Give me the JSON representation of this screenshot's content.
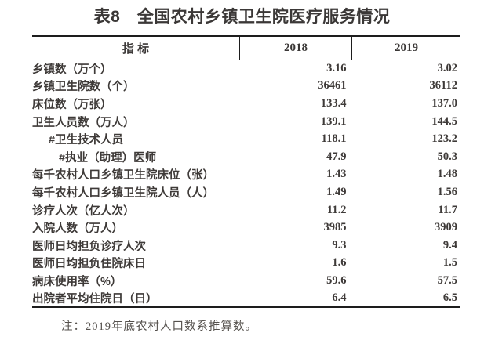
{
  "title": "表8　全国农村乡镇卫生院医疗服务情况",
  "table": {
    "columns": [
      "指 标",
      "2018",
      "2019"
    ],
    "rows": [
      {
        "label": "乡镇数（万个）",
        "indent": 0,
        "v2018": "3.16",
        "v2019": "3.02"
      },
      {
        "label": "乡镇卫生院数（个）",
        "indent": 0,
        "v2018": "36461",
        "v2019": "36112"
      },
      {
        "label": "床位数（万张）",
        "indent": 0,
        "v2018": "133.4",
        "v2019": "137.0"
      },
      {
        "label": "卫生人员数（万人）",
        "indent": 0,
        "v2018": "139.1",
        "v2019": "144.5"
      },
      {
        "label": "#卫生技术人员",
        "indent": 1,
        "v2018": "118.1",
        "v2019": "123.2"
      },
      {
        "label": "#执业（助理）医师",
        "indent": 2,
        "v2018": "47.9",
        "v2019": "50.3"
      },
      {
        "label": "每千农村人口乡镇卫生院床位（张）",
        "indent": 0,
        "v2018": "1.43",
        "v2019": "1.48"
      },
      {
        "label": "每千农村人口乡镇卫生院人员（人）",
        "indent": 0,
        "v2018": "1.49",
        "v2019": "1.56"
      },
      {
        "label": "诊疗人次（亿人次）",
        "indent": 0,
        "v2018": "11.2",
        "v2019": "11.7"
      },
      {
        "label": "入院人数（万人）",
        "indent": 0,
        "v2018": "3985",
        "v2019": "3909"
      },
      {
        "label": "医师日均担负诊疗人次",
        "indent": 0,
        "v2018": "9.3",
        "v2019": "9.4"
      },
      {
        "label": "医师日均担负住院床日",
        "indent": 0,
        "v2018": "1.6",
        "v2019": "1.5"
      },
      {
        "label": "病床使用率（%）",
        "indent": 0,
        "v2018": "59.6",
        "v2019": "57.5"
      },
      {
        "label": "出院者平均住院日（日）",
        "indent": 0,
        "v2018": "6.4",
        "v2019": "6.5"
      }
    ]
  },
  "note": "注：2019年底农村人口数系推算数。",
  "colors": {
    "text": "#3e3a38",
    "border": "#1d1d1d",
    "note_text": "#55514d",
    "background": "#ffffff"
  }
}
